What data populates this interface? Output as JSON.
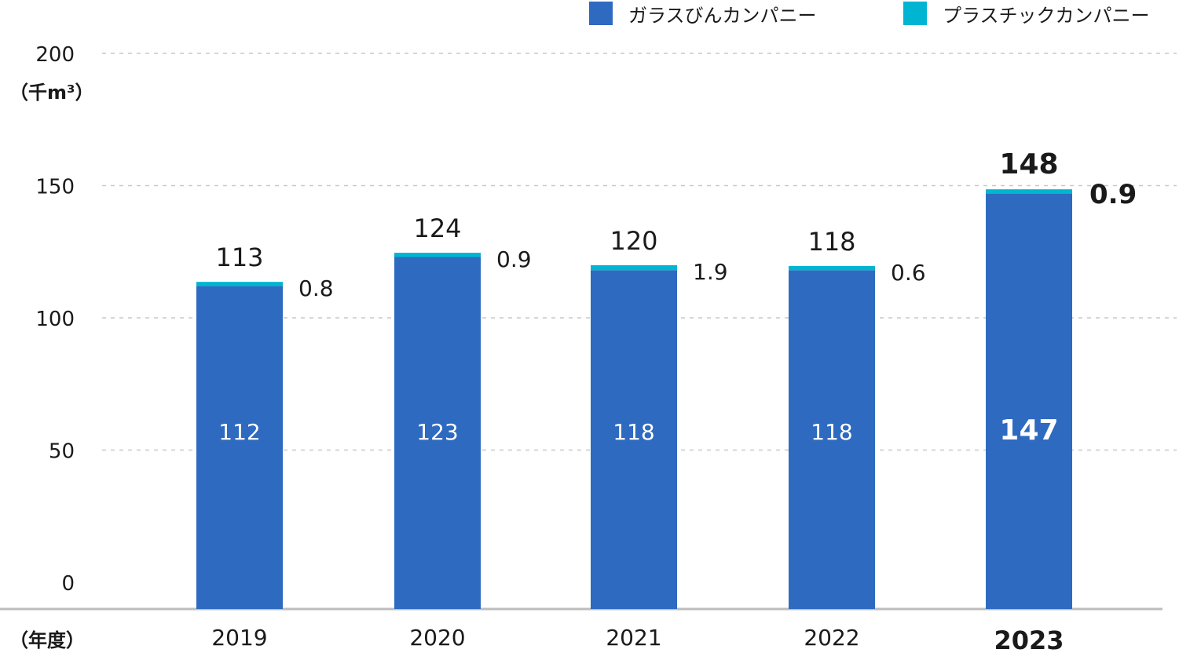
{
  "legend": {
    "glass": {
      "label": "ガラスびんカンパニー",
      "color": "#2e6ac0"
    },
    "plastic": {
      "label": "プラスチックカンパニー",
      "color": "#00b5d1"
    }
  },
  "y_unit": "（千m³）",
  "x_unit": "（年度）",
  "chart_data": {
    "type": "bar",
    "stacked": true,
    "categories": [
      "2019",
      "2020",
      "2021",
      "2022",
      "2023"
    ],
    "series": [
      {
        "name": "ガラスびんカンパニー",
        "values": [
          112,
          123,
          118,
          118,
          147
        ],
        "labels": [
          "112",
          "123",
          "118",
          "118",
          "147"
        ],
        "color": "#2e6ac0"
      },
      {
        "name": "プラスチックカンパニー",
        "values": [
          0.8,
          0.9,
          1.9,
          0.6,
          0.9
        ],
        "labels": [
          "0.8",
          "0.9",
          "1.9",
          "0.6",
          "0.9"
        ],
        "color": "#00b5d1"
      }
    ],
    "totals": [
      "113",
      "124",
      "120",
      "118",
      "148"
    ],
    "ylim": [
      0,
      200
    ],
    "yticks": [
      "0",
      "50",
      "100",
      "150",
      "200"
    ],
    "grid": true,
    "legend_position": "top-right",
    "highlight_category": "2023"
  }
}
